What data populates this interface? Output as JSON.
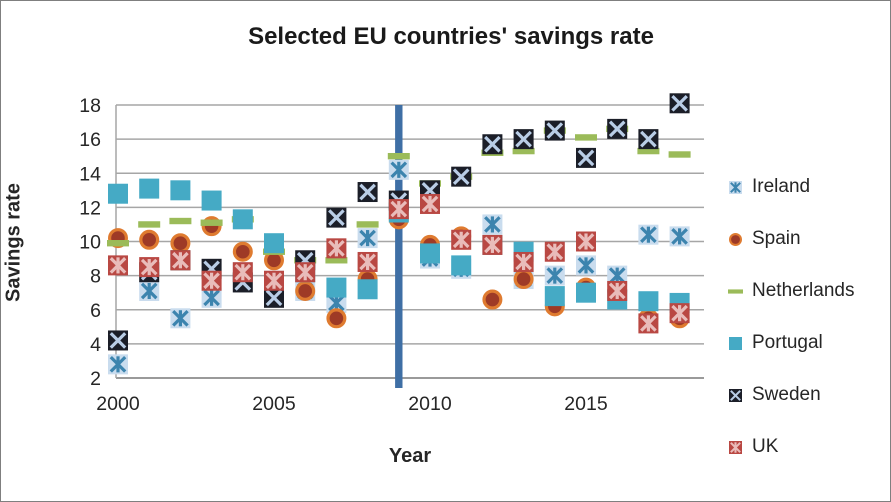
{
  "window": {
    "background": "#ffffff",
    "border_color": "#7f7f7f"
  },
  "title": "Selected EU countries' savings rate",
  "axes": {
    "x_label": "Year",
    "y_label": "Savings rate",
    "x_tick_labels": [
      "2000",
      "2005",
      "2010",
      "2015"
    ],
    "y_tick_labels": [
      "2",
      "4",
      "6",
      "8",
      "10",
      "12",
      "14",
      "16",
      "18"
    ]
  },
  "legend": {
    "position": "right"
  },
  "colors": {
    "gridline": "#a6a6a6",
    "axis_line": "#8c8c8c",
    "event_line": "#3f6fa5",
    "text": "#262626"
  },
  "chart_data": {
    "type": "scatter",
    "title": "Selected EU countries' savings rate",
    "xlabel": "Year",
    "ylabel": "Savings rate",
    "xlim": [
      1999.9,
      2018.8
    ],
    "ylim": [
      2,
      18
    ],
    "x_ticks": [
      2000,
      2005,
      2010,
      2015
    ],
    "y_ticks": [
      2,
      4,
      6,
      8,
      10,
      12,
      14,
      16,
      18
    ],
    "grid": true,
    "legend_position": "right",
    "event_line": {
      "x": 2009,
      "color": "#3f6fa5"
    },
    "x": [
      2000,
      2001,
      2002,
      2003,
      2004,
      2005,
      2006,
      2007,
      2008,
      2009,
      2010,
      2011,
      2012,
      2013,
      2014,
      2015,
      2016,
      2017,
      2018
    ],
    "series": [
      {
        "name": "Ireland",
        "marker": "asterisk-square",
        "bg": "#c9dcee",
        "fg": "#3c84ae",
        "values": [
          2.8,
          7.1,
          5.5,
          6.7,
          8.2,
          7.7,
          7.1,
          6.4,
          10.2,
          14.2,
          9.0,
          8.4,
          11.0,
          7.8,
          8.0,
          8.6,
          8.0,
          10.4,
          10.3
        ]
      },
      {
        "name": "Spain",
        "marker": "ring-circle",
        "bg": "#9e3a26",
        "fg": "#df7b30",
        "values": [
          10.2,
          10.1,
          9.9,
          10.9,
          9.4,
          8.9,
          7.1,
          5.5,
          7.8,
          11.3,
          9.8,
          10.3,
          6.6,
          7.8,
          6.2,
          7.3,
          7.1,
          5.5,
          5.5
        ]
      },
      {
        "name": "Netherlands",
        "marker": "dash",
        "bg": "#9bbb59",
        "fg": "#9bbb59",
        "values": [
          9.9,
          11.0,
          11.2,
          11.1,
          11.3,
          9.4,
          8.9,
          8.9,
          11.0,
          15.0,
          13.4,
          13.8,
          15.2,
          15.3,
          16.5,
          16.1,
          16.6,
          15.3,
          15.1
        ]
      },
      {
        "name": "Portugal",
        "marker": "square",
        "bg": "#45aac5",
        "fg": "#45aac5",
        "values": [
          12.8,
          13.1,
          13.0,
          12.4,
          11.3,
          9.9,
          8.2,
          7.3,
          7.2,
          11.7,
          9.3,
          8.6,
          9.8,
          9.4,
          6.8,
          7.0,
          6.6,
          6.5,
          6.4
        ]
      },
      {
        "name": "Sweden",
        "marker": "x-square",
        "bg": "#1b1e28",
        "fg": "#b9cde6",
        "values": [
          4.2,
          8.2,
          8.9,
          8.4,
          7.6,
          6.7,
          8.9,
          11.4,
          12.9,
          12.4,
          13.0,
          13.8,
          15.7,
          16.0,
          16.5,
          14.9,
          16.6,
          16.0,
          18.1
        ]
      },
      {
        "name": "UK",
        "marker": "asterisk-square",
        "bg": "#b94843",
        "fg": "#e9bcba",
        "values": [
          8.6,
          8.5,
          8.9,
          7.7,
          8.2,
          7.7,
          8.2,
          9.6,
          8.8,
          11.9,
          12.2,
          10.1,
          9.8,
          8.8,
          9.4,
          10.0,
          7.1,
          5.2,
          5.8
        ]
      }
    ]
  }
}
